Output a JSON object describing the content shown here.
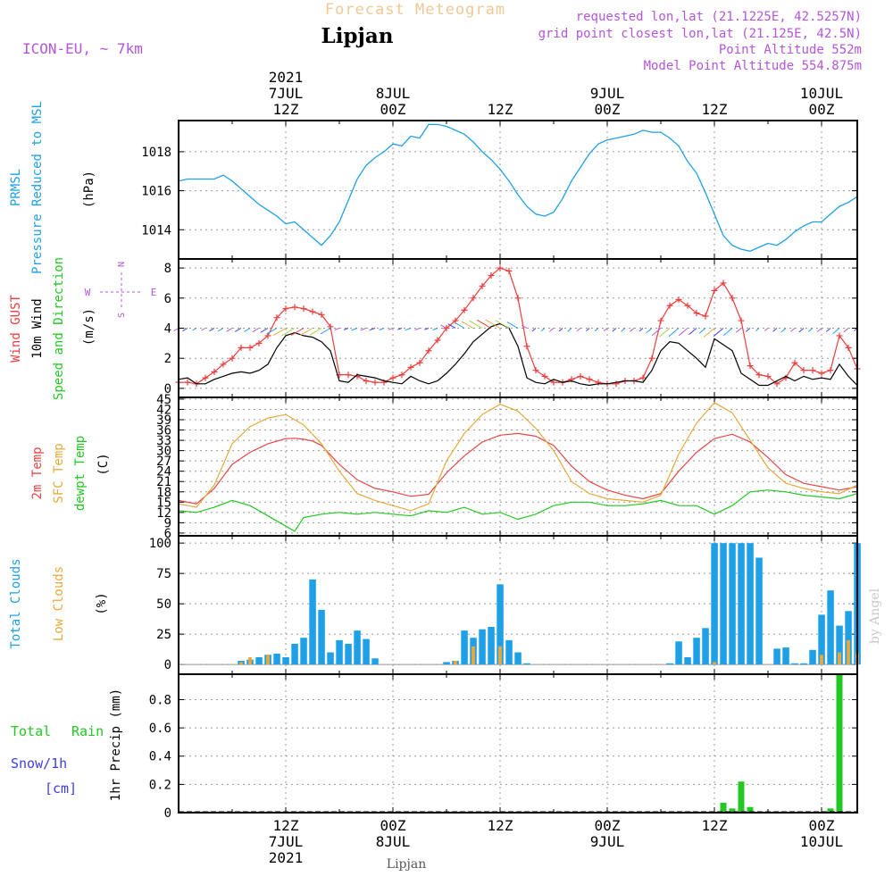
{
  "header": {
    "title": "Forecast Meteogram",
    "location": "Lipjan",
    "model": "ICON-EU, ~ 7km",
    "requested": "requested lon,lat (21.1225E, 42.5257N)",
    "gridpoint": "grid point closest lon,lat (21.125E, 42.5N)",
    "altitude": "Point Altitude 552m",
    "model_altitude": "Model Point Altitude 554.875m",
    "footer_location": "Lipjan",
    "watermark": "by Angel"
  },
  "colors": {
    "pressure": "#1ea0e6",
    "gust": "#f03c3c",
    "wind": "#000000",
    "temp2m": "#e64646",
    "sfc": "#e6aa3c",
    "dew": "#23c823",
    "total_clouds": "#1ea0e6",
    "low_clouds": "#e6aa3c",
    "rain": "#23c823",
    "snow": "#3c3cf0",
    "purple": "#b455dc",
    "grid": "#999999"
  },
  "time_axis": {
    "top_labels": [
      {
        "hour": 12,
        "lines": [
          "2021",
          "7JUL",
          "12Z"
        ]
      },
      {
        "hour": 24,
        "lines": [
          "8JUL",
          "00Z"
        ]
      },
      {
        "hour": 36,
        "lines": [
          "12Z"
        ]
      },
      {
        "hour": 48,
        "lines": [
          "9JUL",
          "00Z"
        ]
      },
      {
        "hour": 60,
        "lines": [
          "12Z"
        ]
      },
      {
        "hour": 72,
        "lines": [
          "10JUL",
          "00Z"
        ]
      }
    ],
    "bottom_labels": [
      {
        "hour": 12,
        "lines": [
          "12Z",
          "7JUL",
          "2021"
        ]
      },
      {
        "hour": 24,
        "lines": [
          "00Z",
          "8JUL"
        ]
      },
      {
        "hour": 36,
        "lines": [
          "12Z"
        ]
      },
      {
        "hour": 48,
        "lines": [
          "00Z",
          "9JUL"
        ]
      },
      {
        "hour": 60,
        "lines": [
          "12Z"
        ]
      },
      {
        "hour": 72,
        "lines": [
          "00Z",
          "10JUL"
        ]
      }
    ]
  },
  "panel_labels": {
    "p1": {
      "a": "PRMSL",
      "b": "Pressure Reduced to MSL",
      "unit": "(hPa)"
    },
    "p2": {
      "a": "Wind GUST",
      "b": "10m Wind",
      "c": "Speed and Direction",
      "unit": "(m/s)",
      "compass": {
        "n": "N",
        "s": "S",
        "w": "W",
        "e": "E"
      }
    },
    "p3": {
      "a": "2m Temp",
      "b": "SFC Temp",
      "c": "dewpt Temp",
      "unit": "(C)"
    },
    "p4": {
      "a": "Total Clouds",
      "b": "Low Clouds",
      "unit": "(%)"
    },
    "p5": {
      "a": "Total",
      "b": "Rain",
      "c": "Snow/1h",
      "d": "[cm]",
      "axis": "1hr Precip (mm)"
    }
  },
  "chart_data": [
    {
      "type": "line",
      "title": "PRMSL Pressure Reduced to MSL",
      "ylabel": "(hPa)",
      "x_unit": "hours from 2021-07-07 00Z",
      "ylim": [
        1012.5,
        1019.6
      ],
      "yticks": [
        1014,
        1016,
        1018
      ],
      "series": [
        {
          "name": "PRMSL",
          "x": [
            0,
            1,
            2,
            3,
            4,
            5,
            6,
            7,
            8,
            9,
            10,
            11,
            12,
            13,
            14,
            15,
            16,
            17,
            18,
            19,
            20,
            21,
            22,
            23,
            24,
            25,
            26,
            27,
            28,
            29,
            30,
            31,
            32,
            33,
            34,
            35,
            36,
            37,
            38,
            39,
            40,
            41,
            42,
            43,
            44,
            45,
            46,
            47,
            48,
            49,
            50,
            51,
            52,
            53,
            54,
            55,
            56,
            57,
            58,
            59,
            60,
            61,
            62,
            63,
            64,
            65,
            66,
            67,
            68,
            69,
            70,
            71,
            72,
            73,
            74,
            75,
            76
          ],
          "values": [
            1016.5,
            1016.6,
            1016.6,
            1016.6,
            1016.6,
            1016.8,
            1016.5,
            1016.1,
            1015.7,
            1015.3,
            1015.0,
            1014.7,
            1014.3,
            1014.4,
            1014.0,
            1013.6,
            1013.2,
            1013.7,
            1014.4,
            1015.5,
            1016.6,
            1017.3,
            1017.7,
            1018.0,
            1018.4,
            1018.3,
            1018.8,
            1018.7,
            1019.4,
            1019.4,
            1019.3,
            1019.1,
            1018.9,
            1018.5,
            1018.0,
            1017.6,
            1017.1,
            1016.5,
            1015.8,
            1015.2,
            1014.8,
            1014.7,
            1014.9,
            1015.6,
            1016.5,
            1017.2,
            1017.9,
            1018.4,
            1018.6,
            1018.7,
            1018.8,
            1018.9,
            1019.1,
            1019.0,
            1019.0,
            1018.7,
            1018.3,
            1017.5,
            1016.9,
            1015.9,
            1014.8,
            1013.7,
            1013.2,
            1013.0,
            1012.9,
            1013.1,
            1013.3,
            1013.2,
            1013.5,
            1013.9,
            1014.2,
            1014.4,
            1014.4,
            1014.8,
            1015.2,
            1015.4,
            1015.7
          ]
        }
      ]
    },
    {
      "type": "line",
      "title": "Wind GUST / 10m Wind Speed and Direction",
      "ylabel": "(m/s)",
      "ylim": [
        -0.6,
        8.6
      ],
      "yticks": [
        0,
        2,
        4,
        6,
        8
      ],
      "series": [
        {
          "name": "Wind GUST",
          "x": [
            0,
            1,
            2,
            3,
            4,
            5,
            6,
            7,
            8,
            9,
            10,
            11,
            12,
            13,
            14,
            15,
            16,
            17,
            18,
            19,
            20,
            21,
            22,
            23,
            24,
            25,
            26,
            27,
            28,
            29,
            30,
            31,
            32,
            33,
            34,
            35,
            36,
            37,
            38,
            39,
            40,
            41,
            42,
            43,
            44,
            45,
            46,
            47,
            48,
            49,
            50,
            51,
            52,
            53,
            54,
            55,
            56,
            57,
            58,
            59,
            60,
            61,
            62,
            63,
            64,
            65,
            66,
            67,
            68,
            69,
            70,
            71,
            72,
            73,
            74,
            75,
            76
          ],
          "values": [
            0.4,
            0.4,
            0.3,
            0.7,
            1.1,
            1.6,
            2.0,
            2.7,
            2.7,
            3.0,
            3.5,
            4.7,
            5.3,
            5.4,
            5.3,
            5.1,
            4.9,
            4.1,
            0.9,
            0.9,
            0.8,
            0.5,
            0.4,
            0.4,
            0.7,
            0.9,
            1.4,
            1.7,
            2.5,
            3.2,
            4.0,
            4.5,
            5.2,
            6.0,
            6.8,
            7.5,
            8.0,
            7.8,
            6.0,
            2.8,
            1.2,
            0.8,
            0.4,
            0.4,
            0.6,
            0.8,
            0.6,
            0.4,
            0.3,
            0.3,
            0.5,
            0.5,
            0.7,
            2.0,
            4.5,
            5.5,
            5.9,
            5.5,
            5.0,
            4.8,
            6.5,
            7.0,
            6.0,
            4.5,
            1.5,
            0.9,
            0.8,
            0.3,
            0.7,
            1.7,
            1.2,
            1.2,
            1.0,
            1.2,
            3.5,
            2.7,
            1.3
          ]
        },
        {
          "name": "10m Wind",
          "x": [
            0,
            1,
            2,
            3,
            4,
            5,
            6,
            7,
            8,
            9,
            10,
            11,
            12,
            13,
            14,
            15,
            16,
            17,
            18,
            19,
            20,
            21,
            22,
            23,
            24,
            25,
            26,
            27,
            28,
            29,
            30,
            31,
            32,
            33,
            34,
            35,
            36,
            37,
            38,
            39,
            40,
            41,
            42,
            43,
            44,
            45,
            46,
            47,
            48,
            49,
            50,
            51,
            52,
            53,
            54,
            55,
            56,
            57,
            58,
            59,
            60,
            61,
            62,
            63,
            64,
            65,
            66,
            67,
            68,
            69,
            70,
            71,
            72,
            73,
            74,
            75,
            76
          ],
          "values": [
            0.6,
            0.7,
            0.3,
            0.3,
            0.6,
            0.8,
            1.0,
            1.1,
            1.0,
            1.2,
            1.6,
            2.7,
            3.5,
            3.7,
            3.5,
            3.4,
            3.1,
            2.5,
            0.5,
            0.4,
            0.9,
            0.8,
            0.7,
            0.5,
            0.4,
            0.3,
            0.8,
            0.5,
            0.3,
            0.5,
            1.0,
            1.6,
            2.3,
            3.1,
            3.6,
            4.1,
            4.3,
            4.0,
            2.8,
            0.7,
            0.4,
            0.3,
            0.6,
            0.4,
            0.5,
            0.3,
            0.2,
            0.3,
            0.3,
            0.4,
            0.5,
            0.5,
            0.4,
            1.2,
            2.5,
            3.1,
            3.0,
            2.5,
            2.0,
            1.4,
            3.3,
            2.9,
            2.5,
            1.0,
            0.6,
            0.2,
            0.2,
            0.5,
            0.8,
            0.5,
            0.8,
            0.6,
            0.7,
            0.6,
            1.6,
            0.8,
            0.2
          ]
        }
      ]
    },
    {
      "type": "line",
      "title": "2m Temp / SFC Temp / dewpt Temp",
      "ylabel": "(C)",
      "ylim": [
        5.2,
        45.5
      ],
      "yticks": [
        6,
        9,
        12,
        15,
        18,
        21,
        24,
        27,
        30,
        33,
        36,
        39,
        42,
        45
      ],
      "series": [
        {
          "name": "2m Temp",
          "x": [
            0,
            2,
            4,
            6,
            8,
            10,
            12,
            13,
            14,
            15,
            16,
            18,
            20,
            22,
            24,
            26,
            28,
            30,
            32,
            34,
            36,
            38,
            40,
            42,
            44,
            46,
            48,
            50,
            52,
            54,
            56,
            58,
            60,
            62,
            64,
            66,
            68,
            70,
            72,
            74,
            76
          ],
          "values": [
            15.5,
            14.5,
            19.0,
            26.0,
            29.5,
            32.0,
            33.5,
            33.6,
            33.3,
            32.8,
            31.5,
            26.0,
            21.5,
            19.0,
            18.0,
            16.7,
            17.3,
            23.5,
            28.5,
            32.5,
            34.5,
            35.0,
            34.2,
            31.5,
            25.5,
            21.0,
            18.5,
            17.0,
            16.0,
            17.5,
            24.0,
            29.5,
            33.5,
            34.8,
            32.5,
            28.0,
            23.0,
            20.5,
            19.5,
            18.5,
            19.5
          ]
        },
        {
          "name": "SFC Temp",
          "x": [
            0,
            2,
            4,
            6,
            8,
            10,
            12,
            14,
            16,
            18,
            20,
            22,
            24,
            26,
            28,
            30,
            32,
            34,
            36,
            38,
            40,
            42,
            44,
            46,
            48,
            50,
            52,
            54,
            56,
            58,
            60,
            62,
            64,
            66,
            68,
            70,
            72,
            74,
            76
          ],
          "values": [
            14.5,
            13.5,
            20.0,
            32.0,
            37.0,
            39.5,
            40.5,
            37.5,
            32.0,
            24.0,
            17.5,
            15.5,
            14.0,
            12.5,
            14.5,
            27.0,
            35.0,
            40.5,
            43.5,
            41.5,
            36.5,
            30.0,
            21.0,
            17.5,
            16.0,
            15.5,
            15.0,
            17.0,
            29.0,
            38.0,
            44.0,
            41.0,
            33.0,
            25.0,
            20.5,
            19.0,
            18.0,
            17.5,
            20.0
          ]
        },
        {
          "name": "dewpt Temp",
          "x": [
            0,
            2,
            4,
            6,
            8,
            10,
            12,
            13,
            14,
            16,
            18,
            20,
            22,
            24,
            26,
            28,
            30,
            32,
            34,
            36,
            38,
            40,
            42,
            44,
            46,
            48,
            50,
            52,
            54,
            56,
            58,
            60,
            62,
            64,
            66,
            68,
            70,
            72,
            74,
            76
          ],
          "values": [
            12.5,
            12.0,
            13.5,
            15.5,
            14.0,
            11.0,
            8.0,
            6.5,
            10.5,
            11.5,
            12.0,
            11.5,
            12.0,
            11.5,
            11.0,
            12.5,
            12.0,
            13.5,
            11.5,
            12.0,
            10.0,
            11.5,
            14.0,
            15.0,
            15.0,
            14.0,
            14.0,
            14.5,
            15.5,
            14.0,
            14.0,
            11.5,
            14.0,
            18.0,
            18.5,
            18.0,
            17.0,
            16.5,
            16.0,
            17.5
          ]
        }
      ]
    },
    {
      "type": "bar",
      "title": "Total Clouds / Low Clouds",
      "ylabel": "(%)",
      "ylim": [
        -8,
        106
      ],
      "yticks": [
        0,
        25,
        50,
        75,
        100
      ],
      "series": [
        {
          "name": "Total Clouds",
          "x": [
            7,
            8,
            9,
            10,
            11,
            12,
            13,
            14,
            15,
            16,
            17,
            18,
            19,
            20,
            21,
            22,
            30,
            31,
            32,
            33,
            34,
            35,
            36,
            37,
            38,
            39,
            55,
            56,
            57,
            58,
            59,
            60,
            61,
            62,
            63,
            64,
            65,
            67,
            68,
            69,
            70,
            71,
            72,
            73,
            74,
            75,
            76
          ],
          "values": [
            3,
            4,
            6,
            8,
            9,
            6,
            17,
            22,
            70,
            45,
            10,
            20,
            17,
            28,
            21,
            5,
            2,
            3,
            28,
            22,
            29,
            31,
            66,
            20,
            10,
            1,
            1,
            19,
            6,
            22,
            30,
            100,
            100,
            100,
            100,
            100,
            88,
            13,
            14,
            1,
            1,
            12,
            41,
            61,
            32,
            44,
            100
          ]
        },
        {
          "name": "Low Clouds",
          "x": [
            7,
            8,
            10,
            31,
            33,
            36,
            60,
            72,
            74,
            75,
            76
          ],
          "values": [
            2,
            6,
            8,
            3,
            15,
            15,
            2,
            8,
            10,
            20,
            10
          ]
        }
      ]
    },
    {
      "type": "bar",
      "title": "1hr Precip (mm)",
      "ylabel": "1hr Precip (mm)",
      "ylim": [
        0,
        0.98
      ],
      "yticks": [
        0,
        0.2,
        0.4,
        0.6,
        0.8
      ],
      "series": [
        {
          "name": "Total Rain",
          "x": [
            61,
            62,
            63,
            64,
            73,
            74
          ],
          "values": [
            0.07,
            0.03,
            0.22,
            0.04,
            0.03,
            0.98
          ]
        },
        {
          "name": "Snow/1h",
          "x": [],
          "values": []
        }
      ]
    }
  ]
}
